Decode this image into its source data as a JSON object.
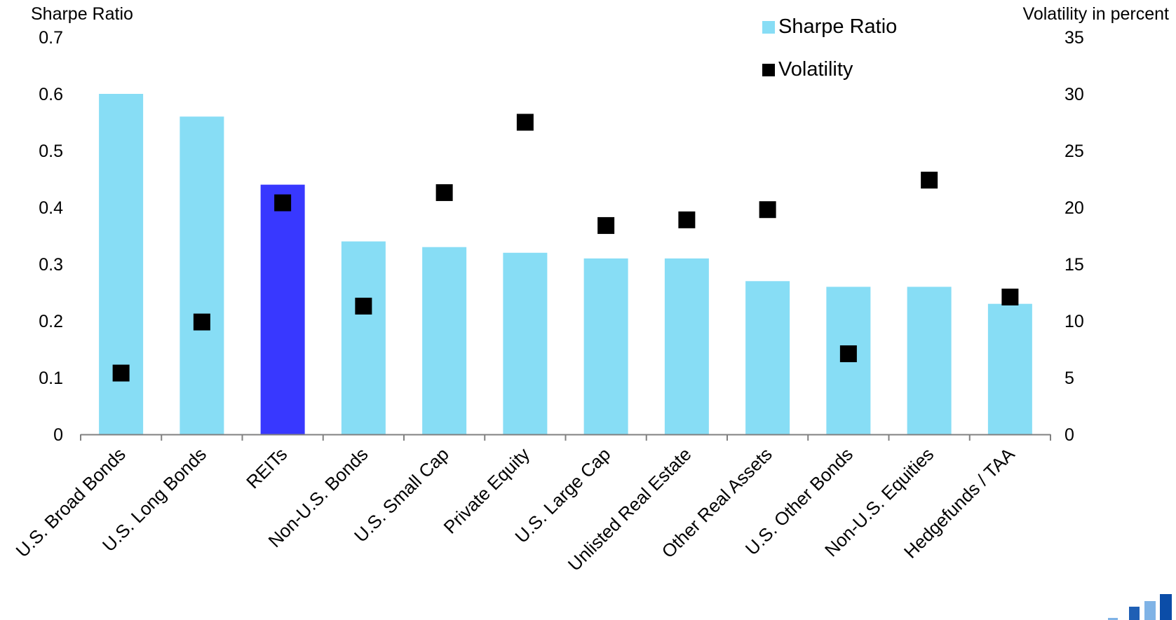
{
  "chart_data": {
    "type": "bar",
    "categories": [
      "U.S. Broad Bonds",
      "U.S. Long Bonds",
      "REITs",
      "Non-U.S. Bonds",
      "U.S. Small Cap",
      "Private Equity",
      "U.S. Large Cap",
      "Unlisted Real Estate",
      "Other Real Assets",
      "U.S. Other Bonds",
      "Non-U.S. Equities",
      "Hedgefunds / TAA"
    ],
    "series": [
      {
        "name": "Sharpe Ratio",
        "type": "bar",
        "axis": "left",
        "color": "#87DDF5",
        "values": [
          0.6,
          0.56,
          0.44,
          0.34,
          0.33,
          0.32,
          0.31,
          0.31,
          0.27,
          0.26,
          0.26,
          0.23
        ],
        "highlight": {
          "category": "REITs",
          "color": "#3838FF"
        }
      },
      {
        "name": "Volatility",
        "type": "scatter",
        "axis": "right",
        "color": "#000000",
        "values": [
          5.4,
          9.9,
          20.4,
          11.3,
          21.3,
          27.5,
          18.4,
          18.9,
          19.8,
          7.1,
          22.4,
          12.1
        ]
      }
    ],
    "ylabel": "Sharpe Ratio",
    "ylabel_right": "Volatility in percent",
    "ylim": [
      0,
      0.7
    ],
    "ylim_right": [
      0,
      35
    ],
    "yticks": [
      "0",
      "0.1",
      "0.2",
      "0.3",
      "0.4",
      "0.5",
      "0.6",
      "0.7"
    ],
    "yticks_right": [
      "0",
      "5",
      "10",
      "15",
      "20",
      "25",
      "30",
      "35"
    ],
    "grid": false,
    "legend_position": "top-right"
  },
  "colors": {
    "bar": "#87DDF5",
    "bar_highlight": "#3838FF",
    "marker": "#000000",
    "axis": "#808080"
  },
  "logo": {
    "colors": [
      "#1F5FB5",
      "#7FB3E6",
      "#0B4DA8"
    ]
  }
}
